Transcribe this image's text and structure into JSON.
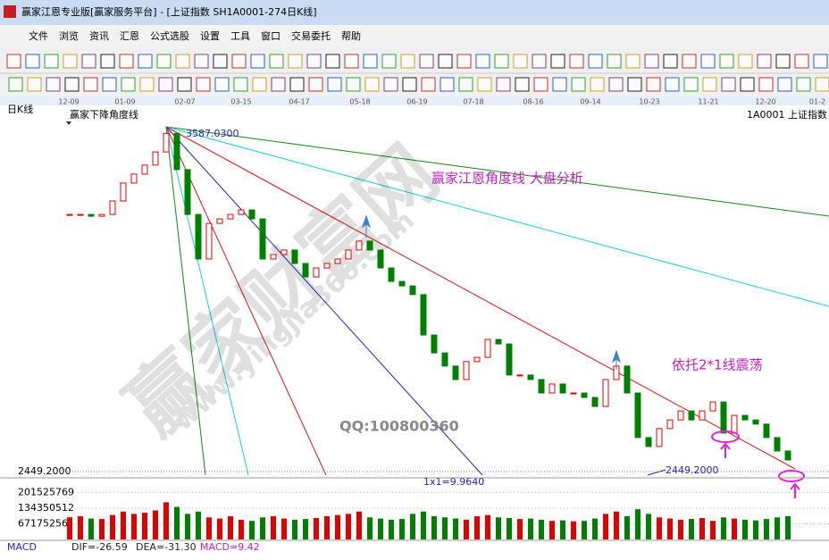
{
  "window": {
    "title": "赢家江恩专业版[赢家服务平台] - [上证指数  SH1A0001-274日K线]",
    "menu": [
      "文件",
      "浏览",
      "资讯",
      "汇恩",
      "公式选股",
      "设置",
      "工具",
      "窗口",
      "交易委托",
      "帮助"
    ]
  },
  "chart_header": {
    "period": "日K线",
    "indicator": "赢家下降角度线",
    "symbol": "1A0001  上证指数"
  },
  "chart_data": [
    {
      "type": "candlestick",
      "x_labels": [
        "12-09",
        "01-09",
        "02-07",
        "03-15",
        "04-17",
        "05-18",
        "06-19",
        "07-18",
        "08-16",
        "09-14",
        "10-23",
        "11-21",
        "12-20",
        "01-2"
      ],
      "values": [
        3309,
        3309,
        3303,
        3309,
        3354,
        3414,
        3444,
        3474,
        3518,
        3580,
        3459,
        3309,
        3160,
        3279,
        3294,
        3309,
        3324,
        3294,
        3160,
        3175,
        3190,
        3145,
        3100,
        3130,
        3145,
        3160,
        3190,
        3220,
        3190,
        3130,
        3085,
        3070,
        3041,
        2906,
        2846,
        2802,
        2757,
        2817,
        2831,
        2891,
        2876,
        2772,
        2772,
        2757,
        2712,
        2742,
        2712,
        2712,
        2697,
        2667,
        2757,
        2802,
        2712,
        2563,
        2533,
        2593,
        2622,
        2652,
        2622,
        2652,
        2682,
        2578,
        2637,
        2622,
        2608,
        2563,
        2518,
        2488
      ],
      "ylim": [
        2449.2,
        3587.03
      ],
      "yticks": [
        {
          "value": 2449.2,
          "label": "2449.2000"
        }
      ],
      "up_color": "#e00000",
      "down_color": "#008000",
      "peak": {
        "value": 3587.03,
        "label": "3587.0300"
      },
      "low": {
        "value": 2449.2,
        "label": "2449.2000"
      },
      "annotations": {
        "main": "赢家江恩角度线  大盘分析",
        "support": "依托2*1线震荡",
        "slope": "1x1=9.9640",
        "contact": "QQ:100800360"
      },
      "watermark": {
        "brand": "赢家财富网",
        "site": "www.yingjia360.com"
      }
    },
    {
      "type": "bar",
      "values": [
        95000000,
        100000000,
        90000000,
        88000000,
        105000000,
        120000000,
        110000000,
        115000000,
        125000000,
        160000000,
        140000000,
        110000000,
        120000000,
        95000000,
        90000000,
        100000000,
        85000000,
        80000000,
        95000000,
        100000000,
        90000000,
        85000000,
        88000000,
        92000000,
        100000000,
        105000000,
        110000000,
        120000000,
        95000000,
        90000000,
        85000000,
        88000000,
        110000000,
        120000000,
        100000000,
        95000000,
        90000000,
        85000000,
        100000000,
        105000000,
        95000000,
        92000000,
        88000000,
        90000000,
        85000000,
        80000000,
        82000000,
        78000000,
        80000000,
        90000000,
        110000000,
        120000000,
        100000000,
        130000000,
        110000000,
        95000000,
        90000000,
        85000000,
        88000000,
        92000000,
        80000000,
        95000000,
        90000000,
        85000000,
        82000000,
        88000000,
        95000000,
        100000000
      ],
      "ylim": [
        0,
        265000000
      ],
      "yticks": [
        201525769,
        134350512,
        67175256
      ]
    }
  ],
  "macd": {
    "name": "MACD",
    "dif": "DIF=-26.59",
    "dea": "DEA=-31.30",
    "macd": "MACD=9.42"
  }
}
